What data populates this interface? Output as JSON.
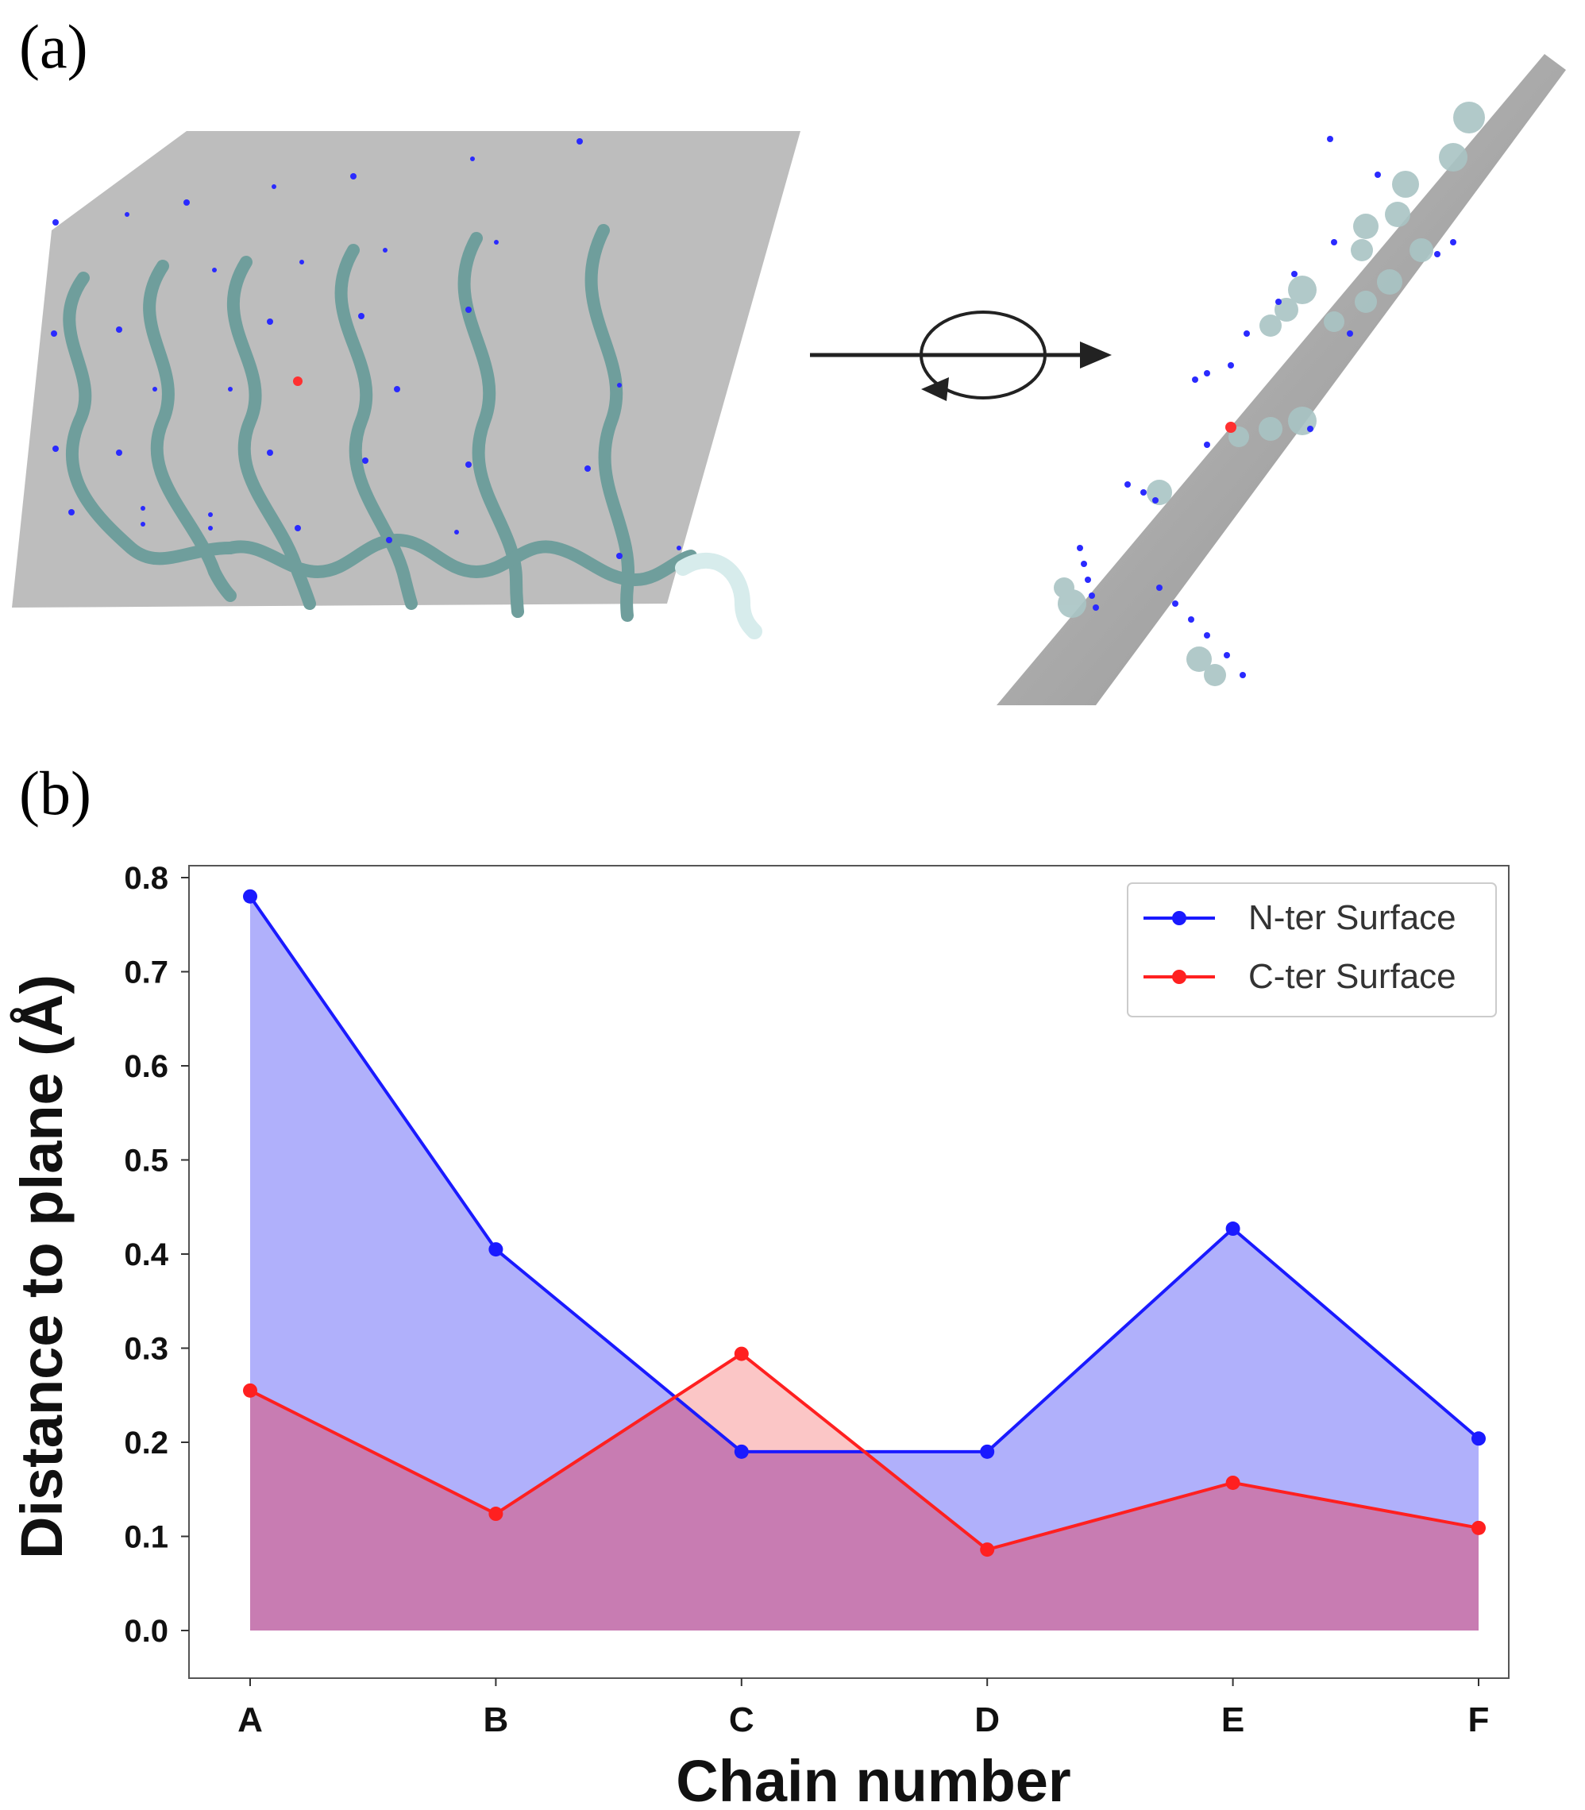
{
  "figure": {
    "panel_a_label": "(a)",
    "panel_b_label": "(b)"
  },
  "colors": {
    "plane": "#bdbdbd",
    "chain": "#6f9e9c",
    "n_ter": "#1a1aff",
    "c_ter": "#ff2020",
    "n_fill": "#b0b0fb",
    "c_fill": "#f9b3b3",
    "overlap_fill": "#c87cb2"
  },
  "chart_data": {
    "type": "line",
    "xlabel": "Chain number",
    "ylabel": "Distance to plane (Å)",
    "categories": [
      "A",
      "B",
      "C",
      "D",
      "E",
      "F"
    ],
    "ylim": [
      0.0,
      0.8
    ],
    "yticks": [
      "0.0",
      "0.1",
      "0.2",
      "0.3",
      "0.4",
      "0.5",
      "0.6",
      "0.7",
      "0.8"
    ],
    "legend_position": "top-right",
    "fill_to_zero": true,
    "series": [
      {
        "name": "N-ter Surface",
        "color": "#1a1aff",
        "values": [
          0.78,
          0.405,
          0.19,
          0.19,
          0.427,
          0.204
        ]
      },
      {
        "name": "C-ter Surface",
        "color": "#ff2020",
        "values": [
          0.255,
          0.124,
          0.294,
          0.086,
          0.157,
          0.109
        ]
      }
    ]
  }
}
